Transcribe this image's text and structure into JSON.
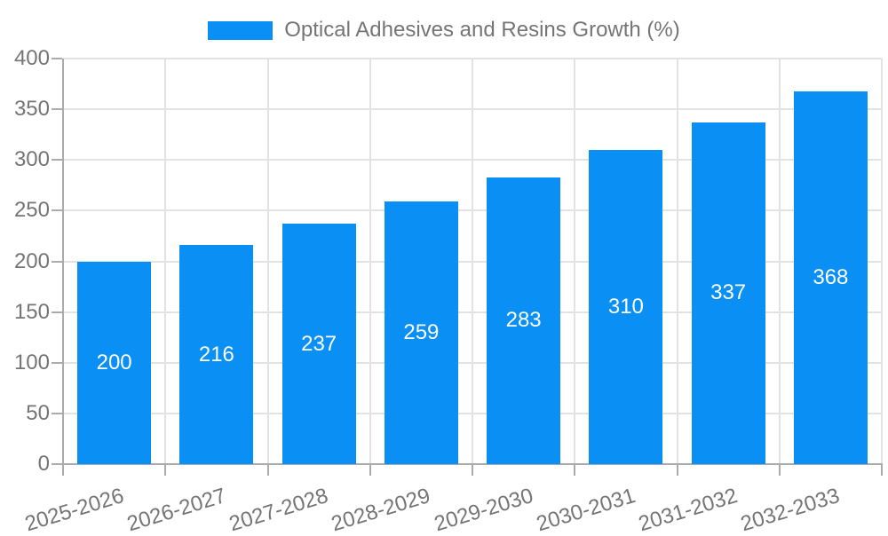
{
  "chart_data": {
    "type": "bar",
    "title": "Optical Adhesives and Resins Growth (%)",
    "legend": {
      "position": "top",
      "label": "Optical Adhesives and Resins Growth (%)"
    },
    "categories": [
      "2025-2026",
      "2026-2027",
      "2027-2028",
      "2028-2029",
      "2029-2030",
      "2030-2031",
      "2031-2032",
      "2032-2033"
    ],
    "values": [
      200,
      216,
      237,
      259,
      283,
      310,
      337,
      368
    ],
    "value_labels_shown": true,
    "xlabel": "",
    "ylabel": "",
    "ylim": [
      0,
      400
    ],
    "ytick_step": 50,
    "ytick_labels": [
      "0",
      "50",
      "100",
      "150",
      "200",
      "250",
      "300",
      "350",
      "400"
    ],
    "grid": true,
    "x_label_rotation_deg": -17,
    "colors": {
      "bar": "#0A90F5",
      "value_label": "#FFFFFF",
      "axis": "#ABABAB",
      "gridline": "#E3E3E3",
      "text": "#757575",
      "background": "#FFFFFF"
    }
  }
}
